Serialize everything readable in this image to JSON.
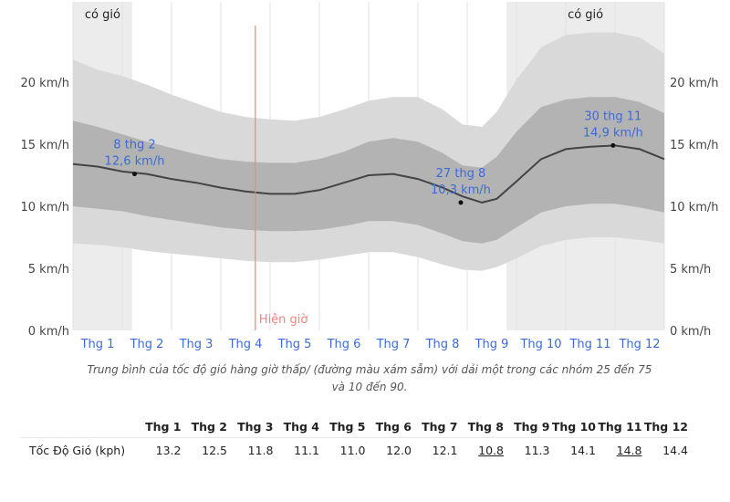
{
  "chart_data": {
    "type": "area",
    "y_unit": "km/h",
    "ylim": [
      0,
      25
    ],
    "yticks": [
      0,
      5,
      10,
      15,
      20
    ],
    "ytick_labels": [
      "0 km/h",
      "5 km/h",
      "10 km/h",
      "15 km/h",
      "20 km/h"
    ],
    "month_labels": [
      "Thg 1",
      "Thg 2",
      "Thg 3",
      "Thg 4",
      "Thg 5",
      "Thg 6",
      "Thg 7",
      "Thg 8",
      "Thg 9",
      "Thg 10",
      "Thg 11",
      "Thg 12"
    ],
    "windy_label": "có gió",
    "windy_periods": [
      {
        "label": "có gió",
        "start": 0,
        "end": 1.2
      },
      {
        "label": "có gió",
        "start": 8.8,
        "end": 12
      }
    ],
    "now_label": "Hiện giờ",
    "now_month": 3.7,
    "series": [
      {
        "name": "p90",
        "x": [
          0,
          0.5,
          1,
          1.5,
          2,
          2.5,
          3,
          3.5,
          4,
          4.5,
          5,
          5.5,
          6,
          6.5,
          7,
          7.5,
          7.9,
          8.3,
          8.6,
          9,
          9.5,
          10,
          10.5,
          11,
          11.5,
          12
        ],
        "values": [
          21.8,
          21.0,
          20.5,
          19.8,
          19.0,
          18.3,
          17.6,
          17.2,
          17.0,
          16.9,
          17.2,
          17.8,
          18.5,
          18.8,
          18.8,
          17.8,
          16.6,
          16.4,
          17.6,
          20.2,
          22.8,
          23.8,
          24.0,
          24.0,
          23.6,
          22.3
        ]
      },
      {
        "name": "p75",
        "x": [
          0,
          0.5,
          1,
          1.5,
          2,
          2.5,
          3,
          3.5,
          4,
          4.5,
          5,
          5.5,
          6,
          6.5,
          7,
          7.5,
          7.9,
          8.3,
          8.6,
          9,
          9.5,
          10,
          10.5,
          11,
          11.5,
          12
        ],
        "values": [
          16.9,
          16.4,
          15.8,
          15.2,
          14.7,
          14.2,
          13.8,
          13.6,
          13.5,
          13.5,
          13.8,
          14.4,
          15.2,
          15.5,
          15.2,
          14.3,
          13.3,
          13.1,
          14.0,
          16.0,
          18.0,
          18.6,
          18.8,
          18.8,
          18.4,
          17.5
        ]
      },
      {
        "name": "average",
        "x": [
          0,
          0.5,
          1,
          1.5,
          2,
          2.5,
          3,
          3.5,
          4,
          4.5,
          5,
          5.5,
          6,
          6.5,
          7,
          7.5,
          7.9,
          8.3,
          8.6,
          9,
          9.5,
          10,
          10.5,
          11,
          11.5,
          12
        ],
        "values": [
          13.4,
          13.2,
          12.8,
          12.6,
          12.2,
          11.9,
          11.5,
          11.2,
          11.0,
          11.0,
          11.3,
          11.9,
          12.5,
          12.6,
          12.2,
          11.5,
          10.8,
          10.3,
          10.6,
          12.0,
          13.8,
          14.6,
          14.8,
          14.9,
          14.6,
          13.8
        ]
      },
      {
        "name": "p25",
        "x": [
          0,
          0.5,
          1,
          1.5,
          2,
          2.5,
          3,
          3.5,
          4,
          4.5,
          5,
          5.5,
          6,
          6.5,
          7,
          7.5,
          7.9,
          8.3,
          8.6,
          9,
          9.5,
          10,
          10.5,
          11,
          11.5,
          12
        ],
        "values": [
          10.0,
          9.8,
          9.6,
          9.2,
          8.9,
          8.6,
          8.3,
          8.1,
          8.0,
          8.0,
          8.1,
          8.4,
          8.8,
          8.8,
          8.5,
          7.8,
          7.2,
          7.0,
          7.3,
          8.3,
          9.5,
          10.0,
          10.2,
          10.2,
          9.9,
          9.5
        ]
      },
      {
        "name": "p10",
        "x": [
          0,
          0.5,
          1,
          1.5,
          2,
          2.5,
          3,
          3.5,
          4,
          4.5,
          5,
          5.5,
          6,
          6.5,
          7,
          7.5,
          7.9,
          8.3,
          8.6,
          9,
          9.5,
          10,
          10.5,
          11,
          11.5,
          12
        ],
        "values": [
          7.0,
          6.9,
          6.7,
          6.4,
          6.2,
          6.0,
          5.8,
          5.6,
          5.5,
          5.5,
          5.7,
          6.0,
          6.3,
          6.3,
          5.9,
          5.3,
          4.9,
          4.8,
          5.1,
          5.8,
          6.8,
          7.3,
          7.5,
          7.5,
          7.3,
          7.0
        ]
      }
    ],
    "annotations": [
      {
        "date": "8 thg 2",
        "value": "12,6 km/h",
        "x": 1.25,
        "y": 12.6
      },
      {
        "date": "27 thg 8",
        "value": "10,3 km/h",
        "x": 7.87,
        "y": 10.3
      },
      {
        "date": "30 thg 11",
        "value": "14,9 km/h",
        "x": 10.96,
        "y": 14.9
      }
    ]
  },
  "caption": "Trung bình của tốc độ gió hàng giờ thấp/ (đường màu xám sẫm) với dải một trong các nhóm 25 đến 75 và 10 đến 90.",
  "summary_table": {
    "columns": [
      "Thg 1",
      "Thg 2",
      "Thg 3",
      "Thg 4",
      "Thg 5",
      "Thg 6",
      "Thg 7",
      "Thg 8",
      "Thg 9",
      "Thg 10",
      "Thg 11",
      "Thg 12"
    ],
    "row_label": "Tốc Độ Gió (kph)",
    "values": [
      "13.2",
      "12.5",
      "11.8",
      "11.1",
      "11.0",
      "12.0",
      "12.1",
      "10.8",
      "11.3",
      "14.1",
      "14.8",
      "14.4"
    ],
    "highlight_columns": [
      7,
      10
    ]
  },
  "colors": {
    "windy_shade": "#ececec",
    "band_outer": "#d9d9d9",
    "band_inner": "#b3b3b3",
    "average_line": "#444444",
    "month_label": "#3c6bd6",
    "now_line": "#f2847a",
    "annotation": "#3c6bd6"
  }
}
